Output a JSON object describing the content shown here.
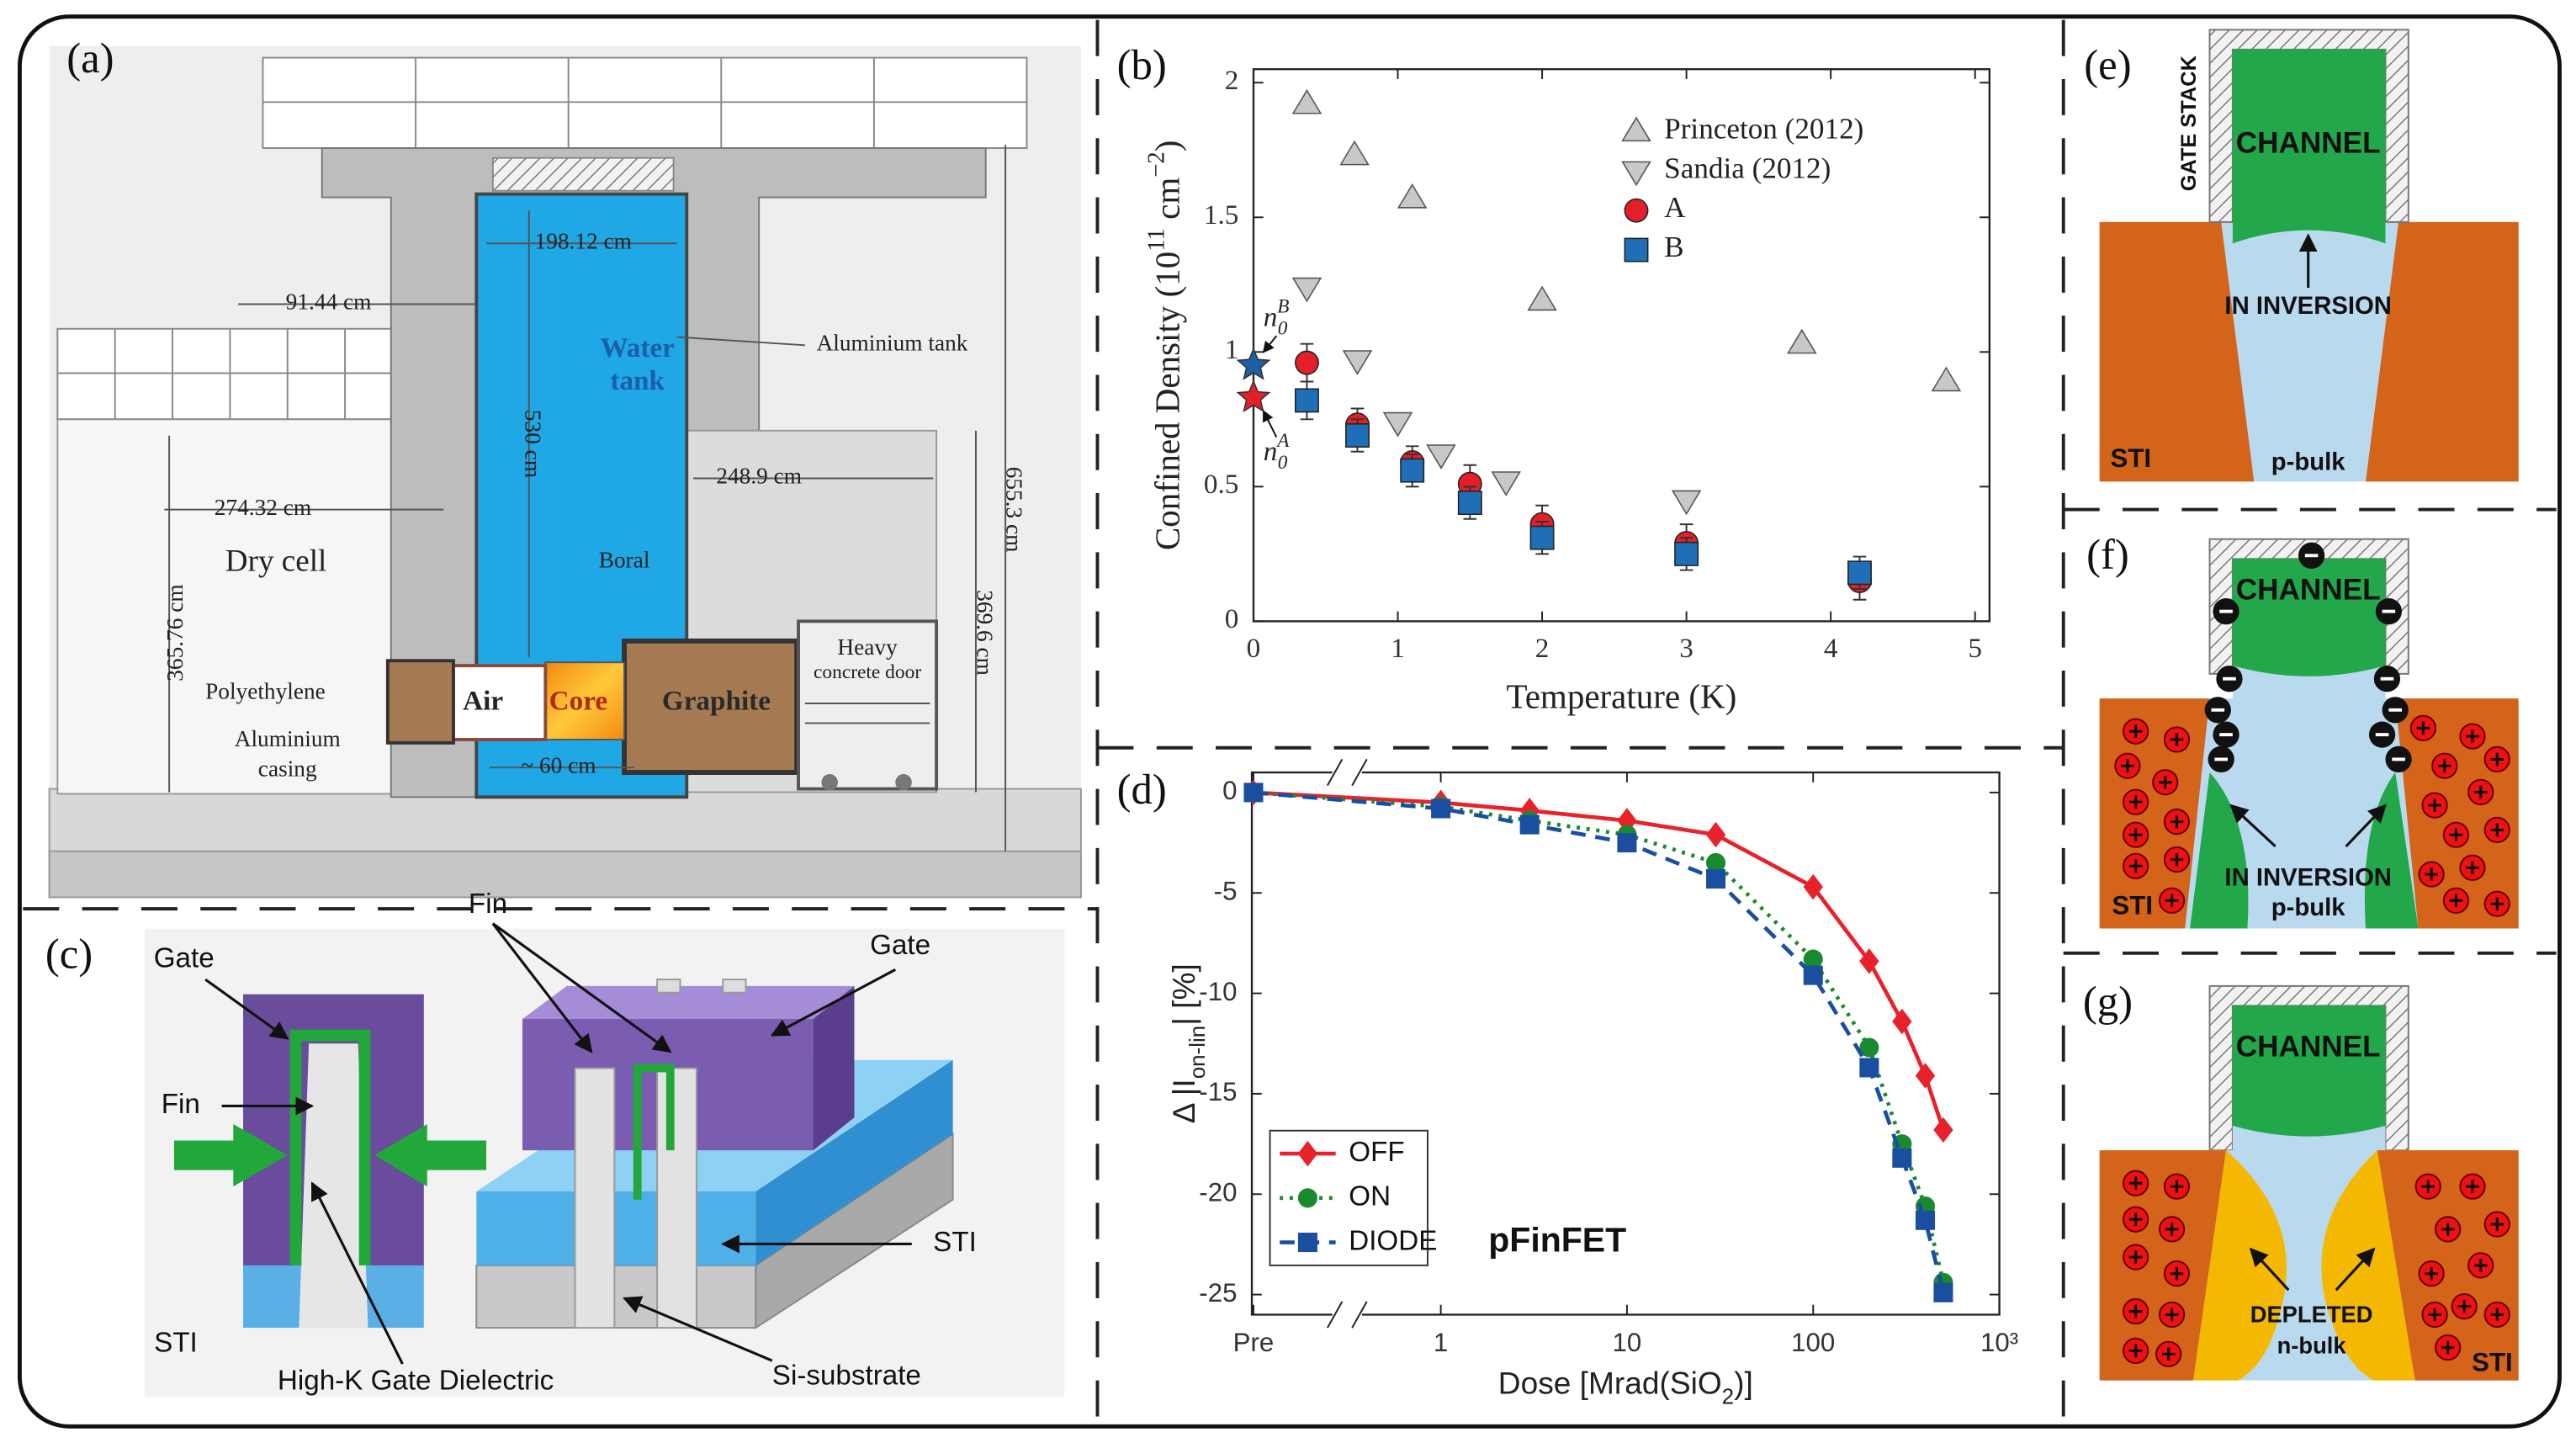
{
  "chart_data": [
    {
      "type": "scatter",
      "xlabel": "Temperature (K)",
      "ylabel": {
        "text": "Confined Density (10",
        "sup": "11",
        "unit": " cm",
        "unit_sup": "−2",
        "close": ")"
      },
      "xlim": [
        0,
        5.1
      ],
      "ylim": [
        0,
        2.05
      ],
      "xticks": [
        0,
        1,
        2,
        3,
        4,
        5
      ],
      "yticks": [
        0,
        0.5,
        1,
        1.5,
        2
      ],
      "legend": "upper right",
      "series": [
        {
          "name": "Princeton (2012)",
          "marker": "triangle-up",
          "color": "#c8c8c8",
          "x": [
            0.37,
            0.7,
            1.1,
            2,
            3.8,
            4.8
          ],
          "values": [
            1.92,
            1.73,
            1.57,
            1.19,
            1.03,
            0.89
          ]
        },
        {
          "name": "Sandia (2012)",
          "marker": "triangle-down",
          "color": "#c8c8c8",
          "x": [
            0.37,
            0.72,
            1.0,
            1.3,
            1.75,
            3
          ],
          "values": [
            1.24,
            0.97,
            0.74,
            0.62,
            0.52,
            0.45
          ]
        },
        {
          "name": "A",
          "marker": "circle",
          "color": "#e3202a",
          "x": [
            0.37,
            0.72,
            1.1,
            1.5,
            2,
            3,
            4.2
          ],
          "values": [
            0.96,
            0.73,
            0.59,
            0.51,
            0.36,
            0.29,
            0.15
          ],
          "errors": [
            0.07,
            0.06,
            0.06,
            0.07,
            0.07,
            0.07,
            0.07
          ]
        },
        {
          "name": "B",
          "marker": "square",
          "color": "#1f6fb8",
          "x": [
            0.37,
            0.72,
            1.1,
            1.5,
            2,
            3,
            4.2
          ],
          "values": [
            0.82,
            0.69,
            0.56,
            0.44,
            0.31,
            0.25,
            0.18
          ],
          "errors": [
            0.07,
            0.06,
            0.06,
            0.06,
            0.06,
            0.06,
            0.06
          ]
        }
      ],
      "annotations": [
        {
          "base": "n",
          "sub": "0",
          "sup": "B",
          "x": 0,
          "y": 0.95,
          "color": "#1f5fa8"
        },
        {
          "base": "n",
          "sub": "0",
          "sup": "A",
          "x": 0,
          "y": 0.83,
          "color": "#e3202a"
        }
      ]
    },
    {
      "type": "line",
      "xlabel": {
        "text": "Dose [Mrad(SiO",
        "sub": "2",
        "close": ")]"
      },
      "ylabel": {
        "text": "Δ |I",
        "sub": "on-lin",
        "close": "| [%]"
      },
      "xscale": "log",
      "x": [
        "Pre",
        1,
        3,
        10,
        30,
        100,
        200,
        300,
        400,
        500
      ],
      "xlim": [
        1,
        1000
      ],
      "ylim": [
        -26,
        1
      ],
      "xticks": [
        "Pre",
        1,
        10,
        100,
        {
          "value": 1000,
          "label": "10³"
        }
      ],
      "yticks": [
        -25,
        -20,
        -15,
        -10,
        -5,
        0
      ],
      "legend": "lower left",
      "annotation": "pFinFET",
      "series": [
        {
          "name": "OFF",
          "marker": "diamond",
          "dash": "solid",
          "color": "#e8222a",
          "values": [
            0,
            -0.5,
            -0.9,
            -1.4,
            -2.1,
            -4.7,
            -8.4,
            -11.4,
            -14.1,
            -16.8
          ]
        },
        {
          "name": "ON",
          "marker": "circle",
          "dash": "dotted",
          "color": "#1b8a2e",
          "values": [
            0,
            -0.7,
            -1.4,
            -2.1,
            -3.5,
            -8.3,
            -12.7,
            -17.5,
            -20.6,
            -24.4
          ]
        },
        {
          "name": "DIODE",
          "marker": "square",
          "dash": "dashed",
          "color": "#1a4fa0",
          "values": [
            0,
            -0.8,
            -1.6,
            -2.5,
            -4.3,
            -9.1,
            -13.7,
            -18.2,
            -21.3,
            -24.9
          ]
        }
      ]
    }
  ],
  "figure": {
    "panel_labels": [
      "(a)",
      "(b)",
      "(c)",
      "(d)",
      "(e)",
      "(f)",
      "(g)"
    ],
    "a": {
      "dims": [
        "91.44 cm",
        "198.12 cm",
        "530 cm",
        "655.3 cm",
        "274.32 cm",
        "248.9 cm",
        "365.76 cm",
        "369.6 cm",
        "~ 60 cm"
      ],
      "labels": [
        "Water",
        "tank",
        "Aluminium tank",
        "Dry cell",
        "Boral",
        "Polyethylene",
        "Aluminium",
        "casing",
        "Air",
        "Core",
        "Graphite",
        "Heavy",
        "concrete door"
      ]
    },
    "c": {
      "labels": [
        "Gate",
        "Fin",
        "STI",
        "High-K Gate Dielectric",
        "Fin",
        "Gate",
        "STI",
        "Si-substrate"
      ]
    },
    "e": {
      "labels": [
        "GATE STACK",
        "CHANNEL",
        "IN INVERSION",
        "STI",
        "p-bulk"
      ]
    },
    "f": {
      "labels": [
        "CHANNEL",
        "IN INVERSION",
        "p-bulk",
        "STI"
      ]
    },
    "g": {
      "labels": [
        "CHANNEL",
        "DEPLETED",
        "n-bulk",
        "STI"
      ]
    }
  }
}
